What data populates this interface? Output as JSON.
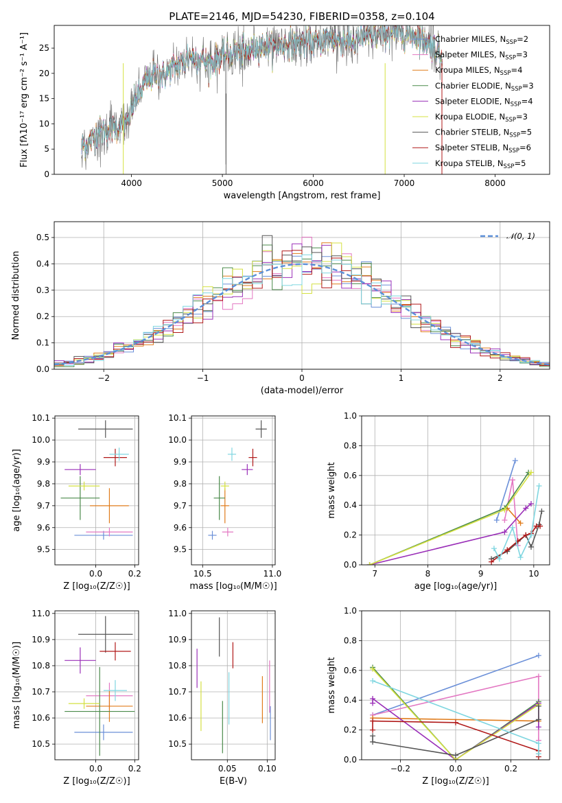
{
  "colors": {
    "Chabrier MILES": "#6a8fd8",
    "Salpeter MILES": "#e377c2",
    "Kroupa MILES": "#e07b1a",
    "Chabrier ELODIE": "#4a8a4a",
    "Salpeter ELODIE": "#9a2fb8",
    "Kroupa ELODIE": "#d4e040",
    "Chabrier STELIB": "#555555",
    "Salpeter STELIB": "#b01818",
    "Kroupa STELIB": "#7fd6e0"
  },
  "chart_data": [
    {
      "id": "spectrum",
      "type": "line",
      "title": "PLATE=2146, MJD=54230, FIBERID=0358, z=0.104",
      "xlabel": "wavelength [Angstrom, rest frame]",
      "ylabel": "Flux [fλ10⁻¹⁷ erg cm⁻² s⁻¹ A⁻¹]",
      "xlim": [
        3150,
        8600
      ],
      "ylim": [
        0,
        29.5
      ],
      "xticks": [
        4000,
        5000,
        6000,
        7000,
        8000
      ],
      "yticks": [
        0,
        5,
        10,
        15,
        20,
        25
      ],
      "grid": false,
      "legend_position": "top-right",
      "continuum_x": [
        3450,
        3550,
        3650,
        3750,
        3850,
        3950,
        4050,
        4150,
        4250,
        4350,
        4450,
        4550,
        4650,
        4750,
        4850,
        4950,
        5050,
        5150,
        5250,
        5350,
        5450,
        5550,
        5650,
        5750,
        5850,
        5950,
        6050,
        6150,
        6250,
        6350,
        6450,
        6550,
        6650,
        6750,
        6850,
        6950,
        7050,
        7150,
        7250,
        7350,
        7420
      ],
      "continuum_y": [
        5.5,
        6.5,
        8.5,
        8.5,
        9.5,
        10,
        15,
        18,
        20,
        19.5,
        21,
        22,
        23.5,
        23,
        22,
        23,
        23.5,
        24.5,
        24,
        25,
        25.5,
        25,
        25.5,
        26,
        26,
        26,
        26,
        27,
        26.5,
        26.5,
        26,
        27,
        27.5,
        27.5,
        28,
        28,
        27.5,
        27.5,
        26,
        25,
        23
      ],
      "series": [
        {
          "name": "Chabrier MILES, N_SSP=2",
          "label_main": "Chabrier MILES, N",
          "label_sub": "SSP",
          "label_tail": "=2"
        },
        {
          "name": "Salpeter MILES, N_SSP=3",
          "label_main": "Salpeter MILES, N",
          "label_sub": "SSP",
          "label_tail": "=3"
        },
        {
          "name": "Kroupa MILES, N_SSP=4",
          "label_main": "Kroupa MILES, N",
          "label_sub": "SSP",
          "label_tail": "=4"
        },
        {
          "name": "Chabrier ELODIE, N_SSP=3",
          "label_main": "Chabrier ELODIE, N",
          "label_sub": "SSP",
          "label_tail": "=3"
        },
        {
          "name": "Salpeter ELODIE, N_SSP=4",
          "label_main": "Salpeter ELODIE, N",
          "label_sub": "SSP",
          "label_tail": "=4"
        },
        {
          "name": "Kroupa ELODIE, N_SSP=3",
          "label_main": "Kroupa ELODIE, N",
          "label_sub": "SSP",
          "label_tail": "=3"
        },
        {
          "name": "Chabrier STELIB, N_SSP=5",
          "label_main": "Chabrier STELIB, N",
          "label_sub": "SSP",
          "label_tail": "=5"
        },
        {
          "name": "Salpeter STELIB, N_SSP=6",
          "label_main": "Salpeter STELIB, N",
          "label_sub": "SSP",
          "label_tail": "=6"
        },
        {
          "name": "Kroupa STELIB, N_SSP=5",
          "label_main": "Kroupa STELIB, N",
          "label_sub": "SSP",
          "label_tail": "=5"
        }
      ]
    },
    {
      "id": "residuals",
      "type": "step-histogram",
      "xlabel": "(data-model)/error",
      "ylabel": "Normed distribution",
      "xlim": [
        -2.5,
        2.5
      ],
      "ylim": [
        0,
        0.56
      ],
      "xticks": [
        -2,
        -1,
        0,
        1,
        2
      ],
      "yticks": [
        0.0,
        0.1,
        0.2,
        0.3,
        0.4,
        0.5
      ],
      "grid": true,
      "legend_position": "top-right",
      "reference_curve": {
        "name": "𝒩(0, 1)",
        "mean": 0,
        "sigma": 1
      },
      "bin_width": 0.1
    },
    {
      "id": "age_vs_Z",
      "type": "errorbar",
      "xlabel": "Z [log₁₀(Z/Z☉)]",
      "ylabel": "age  [log₁₀(age/yr)]",
      "xlim": [
        -0.21,
        0.22
      ],
      "ylim": [
        9.43,
        10.11
      ],
      "xticks": [
        0.0,
        0.2
      ],
      "yticks": [
        9.5,
        9.6,
        9.7,
        9.8,
        9.9,
        10.0,
        10.1
      ],
      "grid": true,
      "points": [
        {
          "series": "Chabrier MILES",
          "x": 0.04,
          "xerr": 0.15,
          "y": 9.565,
          "yerr": 0.02
        },
        {
          "series": "Salpeter MILES",
          "x": 0.07,
          "xerr": 0.12,
          "y": 9.58,
          "yerr": 0.02
        },
        {
          "series": "Kroupa MILES",
          "x": 0.07,
          "xerr": 0.1,
          "y": 9.7,
          "yerr": 0.08
        },
        {
          "series": "Chabrier ELODIE",
          "x": -0.08,
          "xerr": 0.1,
          "y": 9.735,
          "yerr": 0.1
        },
        {
          "series": "Salpeter ELODIE",
          "x": -0.08,
          "xerr": 0.08,
          "y": 9.865,
          "yerr": 0.025
        },
        {
          "series": "Kroupa ELODIE",
          "x": -0.06,
          "xerr": 0.08,
          "y": 9.79,
          "yerr": 0.02
        },
        {
          "series": "Chabrier STELIB",
          "x": 0.05,
          "xerr": 0.14,
          "y": 10.05,
          "yerr": 0.04
        },
        {
          "series": "Salpeter STELIB",
          "x": 0.1,
          "xerr": 0.06,
          "y": 9.92,
          "yerr": 0.04
        },
        {
          "series": "Kroupa STELIB",
          "x": 0.12,
          "xerr": 0.05,
          "y": 9.935,
          "yerr": 0.03
        }
      ]
    },
    {
      "id": "age_vs_mass",
      "type": "errorbar",
      "xlabel": "mass [log₁₀(M/M☉)]",
      "ylabel": "",
      "xlim": [
        10.42,
        11.02
      ],
      "ylim": [
        9.43,
        10.11
      ],
      "xticks": [
        10.5,
        11.0
      ],
      "yticks": [
        9.5,
        9.6,
        9.7,
        9.8,
        9.9,
        10.0,
        10.1
      ],
      "grid": true,
      "points": [
        {
          "series": "Chabrier MILES",
          "x": 10.57,
          "xerr": 0.03,
          "y": 9.565,
          "yerr": 0.02
        },
        {
          "series": "Salpeter MILES",
          "x": 10.68,
          "xerr": 0.04,
          "y": 9.58,
          "yerr": 0.02
        },
        {
          "series": "Kroupa MILES",
          "x": 10.66,
          "xerr": 0.03,
          "y": 9.7,
          "yerr": 0.08
        },
        {
          "series": "Chabrier ELODIE",
          "x": 10.62,
          "xerr": 0.04,
          "y": 9.735,
          "yerr": 0.1
        },
        {
          "series": "Salpeter ELODIE",
          "x": 10.82,
          "xerr": 0.04,
          "y": 9.865,
          "yerr": 0.025
        },
        {
          "series": "Kroupa ELODIE",
          "x": 10.66,
          "xerr": 0.03,
          "y": 9.79,
          "yerr": 0.02
        },
        {
          "series": "Chabrier STELIB",
          "x": 10.92,
          "xerr": 0.04,
          "y": 10.05,
          "yerr": 0.04
        },
        {
          "series": "Salpeter STELIB",
          "x": 10.86,
          "xerr": 0.03,
          "y": 9.92,
          "yerr": 0.04
        },
        {
          "series": "Kroupa STELIB",
          "x": 10.71,
          "xerr": 0.03,
          "y": 9.935,
          "yerr": 0.03
        }
      ]
    },
    {
      "id": "weight_vs_age",
      "type": "line",
      "xlabel": "age  [log₁₀(age/yr)]",
      "ylabel": "mass weight",
      "xlim": [
        6.75,
        10.3
      ],
      "ylim": [
        0,
        1.0
      ],
      "xticks": [
        7,
        8,
        9,
        10
      ],
      "yticks": [
        0.0,
        0.2,
        0.4,
        0.6,
        0.8,
        1.0
      ],
      "grid": true,
      "series": [
        {
          "series": "Chabrier MILES",
          "x": [
            9.3,
            9.65
          ],
          "y": [
            0.3,
            0.7
          ]
        },
        {
          "series": "Salpeter MILES",
          "x": [
            9.45,
            9.6,
            9.7
          ],
          "y": [
            0.3,
            0.57,
            0.13
          ]
        },
        {
          "series": "Kroupa MILES",
          "x": [
            9.5,
            9.75
          ],
          "y": [
            0.38,
            0.28
          ]
        },
        {
          "series": "Chabrier ELODIE",
          "x": [
            6.9,
            9.45,
            9.9
          ],
          "y": [
            0.0,
            0.38,
            0.62
          ]
        },
        {
          "series": "Salpeter ELODIE",
          "x": [
            6.9,
            9.45,
            9.85,
            9.95
          ],
          "y": [
            0.0,
            0.22,
            0.38,
            0.41
          ]
        },
        {
          "series": "Kroupa ELODIE",
          "x": [
            6.9,
            9.45,
            9.95
          ],
          "y": [
            0.0,
            0.37,
            0.62
          ]
        },
        {
          "series": "Chabrier STELIB",
          "x": [
            9.2,
            9.5,
            9.85,
            9.95,
            10.1,
            10.15
          ],
          "y": [
            0.04,
            0.09,
            0.2,
            0.12,
            0.27,
            0.36
          ]
        },
        {
          "series": "Salpeter STELIB",
          "x": [
            9.2,
            9.5,
            9.7,
            9.85,
            9.95,
            10.05,
            10.12
          ],
          "y": [
            0.02,
            0.1,
            0.16,
            0.2,
            0.21,
            0.26,
            0.26
          ]
        },
        {
          "series": "Kroupa STELIB",
          "x": [
            9.25,
            9.35,
            9.6,
            9.75,
            9.95,
            10.1
          ],
          "y": [
            0.11,
            0.04,
            0.25,
            0.05,
            0.2,
            0.53
          ]
        }
      ]
    },
    {
      "id": "mass_vs_Z",
      "type": "errorbar",
      "xlabel": "Z [log₁₀(Z/Z☉)]",
      "ylabel": "mass [log₁₀(M/M☉)]",
      "xlim": [
        -0.21,
        0.22
      ],
      "ylim": [
        10.44,
        11.01
      ],
      "xticks": [
        0.0,
        0.2
      ],
      "yticks": [
        10.5,
        10.6,
        10.7,
        10.8,
        10.9,
        11.0
      ],
      "grid": true,
      "points": [
        {
          "series": "Chabrier MILES",
          "x": 0.04,
          "xerr": 0.15,
          "y": 10.545,
          "yerr": 0.03
        },
        {
          "series": "Salpeter MILES",
          "x": 0.07,
          "xerr": 0.12,
          "y": 10.685,
          "yerr": 0.05
        },
        {
          "series": "Kroupa MILES",
          "x": 0.07,
          "xerr": 0.12,
          "y": 10.645,
          "yerr": 0.06
        },
        {
          "series": "Chabrier ELODIE",
          "x": 0.02,
          "xerr": 0.18,
          "y": 10.625,
          "yerr": 0.17
        },
        {
          "series": "Salpeter ELODIE",
          "x": -0.08,
          "xerr": 0.08,
          "y": 10.82,
          "yerr": 0.05
        },
        {
          "series": "Kroupa ELODIE",
          "x": -0.06,
          "xerr": 0.08,
          "y": 10.655,
          "yerr": 0.02
        },
        {
          "series": "Chabrier STELIB",
          "x": 0.05,
          "xerr": 0.14,
          "y": 10.92,
          "yerr": 0.07
        },
        {
          "series": "Salpeter STELIB",
          "x": 0.1,
          "xerr": 0.08,
          "y": 10.855,
          "yerr": 0.035
        },
        {
          "series": "Kroupa STELIB",
          "x": 0.1,
          "xerr": 0.06,
          "y": 10.705,
          "yerr": 0.04
        }
      ]
    },
    {
      "id": "mass_vs_EBV",
      "type": "errorbar",
      "xlabel": "E(B-V)",
      "ylabel": "",
      "xlim": [
        0.005,
        0.11
      ],
      "ylim": [
        10.44,
        11.01
      ],
      "xticks": [
        0.05,
        0.1
      ],
      "yticks": [
        10.5,
        10.6,
        10.7,
        10.8,
        10.9,
        11.0
      ],
      "grid": true,
      "points": [
        {
          "series": "Chabrier MILES",
          "x": 0.104,
          "y": 10.58,
          "yerr": 0.065
        },
        {
          "series": "Salpeter MILES",
          "x": 0.103,
          "y": 10.72,
          "yerr": 0.1
        },
        {
          "series": "Kroupa MILES",
          "x": 0.094,
          "y": 10.67,
          "yerr": 0.09
        },
        {
          "series": "Chabrier ELODIE",
          "x": 0.044,
          "y": 10.565,
          "yerr": 0.1
        },
        {
          "series": "Salpeter ELODIE",
          "x": 0.012,
          "y": 10.79,
          "yerr": 0.075
        },
        {
          "series": "Kroupa ELODIE",
          "x": 0.017,
          "y": 10.645,
          "yerr": 0.095
        },
        {
          "series": "Chabrier STELIB",
          "x": 0.04,
          "y": 10.91,
          "yerr": 0.075
        },
        {
          "series": "Salpeter STELIB",
          "x": 0.057,
          "y": 10.84,
          "yerr": 0.05
        },
        {
          "series": "Kroupa STELIB",
          "x": 0.052,
          "y": 10.675,
          "yerr": 0.1
        }
      ]
    },
    {
      "id": "weight_vs_Z",
      "type": "line",
      "xlabel": "Z [log₁₀(Z/Z☉)]",
      "ylabel": "mass weight",
      "xlim": [
        -0.34,
        0.34
      ],
      "ylim": [
        0,
        1.0
      ],
      "xticks": [
        -0.2,
        0.0,
        0.2
      ],
      "yticks": [
        0.0,
        0.2,
        0.4,
        0.6,
        0.8,
        1.0
      ],
      "grid": true,
      "series": [
        {
          "series": "Chabrier MILES",
          "x": [
            -0.3,
            0.3
          ],
          "y": [
            0.3,
            0.7
          ]
        },
        {
          "series": "Salpeter MILES",
          "x": [
            -0.3,
            0.3,
            0.3
          ],
          "y": [
            0.3,
            0.56,
            0.13
          ]
        },
        {
          "series": "Kroupa MILES",
          "x": [
            -0.3,
            0.3
          ],
          "y": [
            0.28,
            0.26
          ]
        },
        {
          "series": "Chabrier ELODIE",
          "x": [
            -0.3,
            0.0,
            0.3
          ],
          "y": [
            0.62,
            0.0,
            0.39
          ]
        },
        {
          "series": "Salpeter ELODIE",
          "x": [
            -0.3,
            -0.3,
            0.0,
            0.3,
            0.3
          ],
          "y": [
            0.38,
            0.41,
            0.0,
            0.38,
            0.22
          ]
        },
        {
          "series": "Kroupa ELODIE",
          "x": [
            -0.3,
            0.0,
            0.3
          ],
          "y": [
            0.61,
            0.0,
            0.37
          ]
        },
        {
          "series": "Chabrier STELIB",
          "x": [
            -0.3,
            -0.3,
            0.0,
            0.3,
            0.3
          ],
          "y": [
            0.16,
            0.12,
            0.03,
            0.27,
            0.36
          ]
        },
        {
          "series": "Salpeter STELIB",
          "x": [
            -0.3,
            -0.3,
            0.0,
            0.3,
            0.3
          ],
          "y": [
            0.2,
            0.26,
            0.25,
            0.06,
            0.02
          ]
        },
        {
          "series": "Kroupa STELIB",
          "x": [
            -0.3,
            0.3,
            0.3
          ],
          "y": [
            0.53,
            0.11,
            0.04
          ]
        }
      ]
    }
  ]
}
